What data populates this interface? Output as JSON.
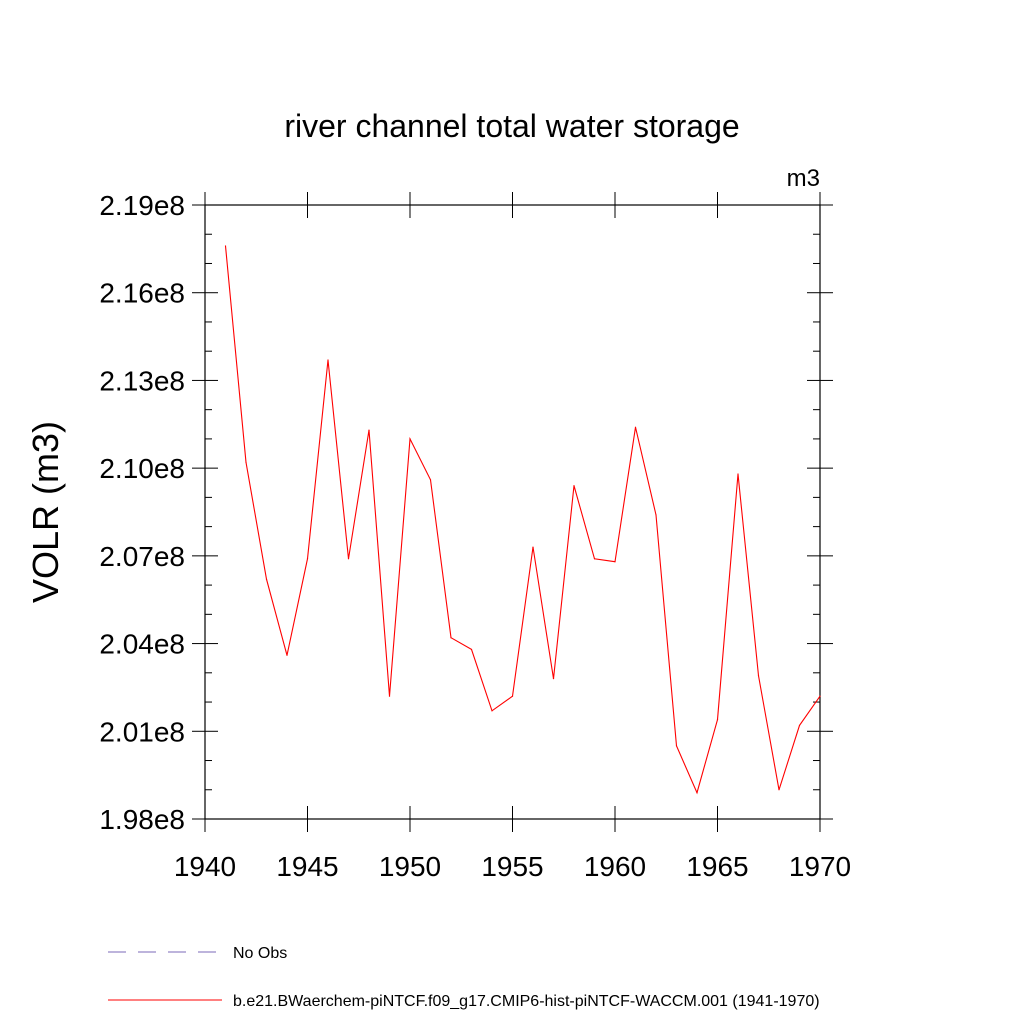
{
  "chart_data": {
    "type": "line",
    "title": "river channel total water storage",
    "units_label": "m3",
    "ylabel": "VOLR  (m3)",
    "xlabel": "",
    "xlim": [
      1940,
      1970
    ],
    "ylim": [
      198000000,
      219000000
    ],
    "x_ticks": [
      1940,
      1945,
      1950,
      1955,
      1960,
      1965,
      1970
    ],
    "x_tick_labels": [
      "1940",
      "1945",
      "1950",
      "1955",
      "1960",
      "1965",
      "1970"
    ],
    "y_ticks": [
      198000000,
      201000000,
      204000000,
      207000000,
      210000000,
      213000000,
      216000000,
      219000000
    ],
    "y_tick_labels": [
      "1.98e8",
      "2.01e8",
      "2.04e8",
      "2.07e8",
      "2.10e8",
      "2.13e8",
      "2.16e8",
      "2.19e8"
    ],
    "grid": false,
    "legend_position": "bottom-left",
    "series": [
      {
        "name": "b.e21.BWaerchem-piNTCF.f09_g17.CMIP6-hist-piNTCF-WACCM.001 (1941-1970)",
        "color": "#ff0000",
        "dash": "solid",
        "x": [
          1941,
          1942,
          1943,
          1944,
          1945,
          1946,
          1947,
          1948,
          1949,
          1950,
          1951,
          1952,
          1953,
          1954,
          1955,
          1956,
          1957,
          1958,
          1959,
          1960,
          1961,
          1962,
          1963,
          1964,
          1965,
          1966,
          1967,
          1968,
          1969,
          1970
        ],
        "values": [
          217600000,
          210200000,
          206200000,
          203600000,
          206900000,
          213700000,
          206900000,
          211300000,
          202200000,
          211000000,
          209600000,
          204200000,
          203800000,
          201700000,
          202200000,
          207300000,
          202800000,
          209400000,
          206900000,
          206800000,
          211400000,
          208400000,
          200500000,
          198900000,
          201400000,
          209800000,
          202900000,
          199000000,
          201200000,
          202200000
        ]
      }
    ],
    "legend": [
      {
        "label": "No Obs",
        "color": "#7b68b8",
        "dash": "dashed"
      },
      {
        "label": "b.e21.BWaerchem-piNTCF.f09_g17.CMIP6-hist-piNTCF-WACCM.001 (1941-1970)",
        "color": "#ff0000",
        "dash": "solid"
      }
    ]
  }
}
